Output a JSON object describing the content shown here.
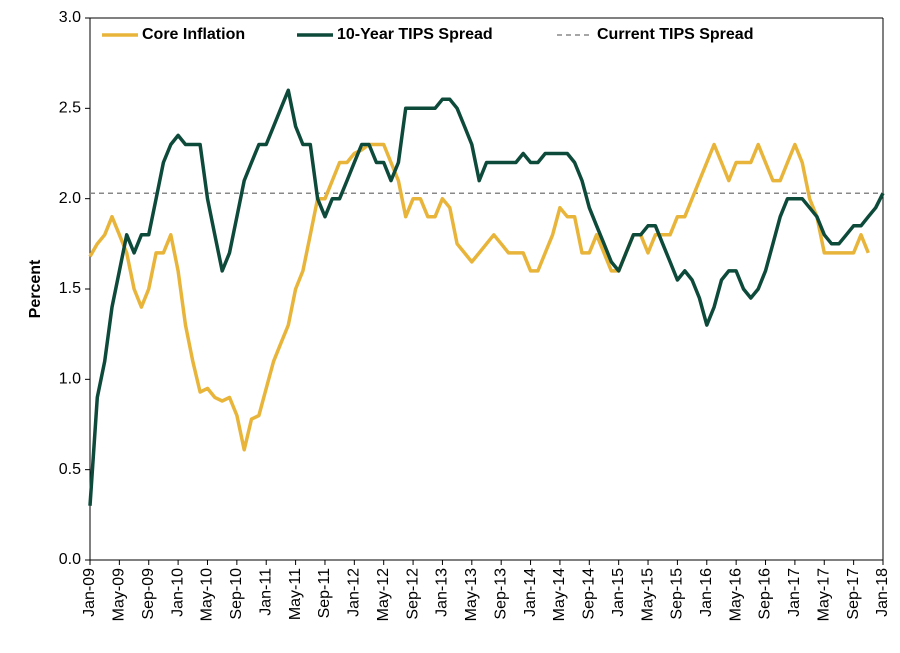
{
  "chart_data": {
    "type": "line",
    "y_label": "Percent",
    "categories": [
      "Jan-09",
      null,
      null,
      null,
      "May-09",
      null,
      null,
      null,
      "Sep-09",
      null,
      null,
      null,
      "Jan-10",
      null,
      null,
      null,
      "May-10",
      null,
      null,
      null,
      "Sep-10",
      null,
      null,
      null,
      "Jan-11",
      null,
      null,
      null,
      "May-11",
      null,
      null,
      null,
      "Sep-11",
      null,
      null,
      null,
      "Jan-12",
      null,
      null,
      null,
      "May-12",
      null,
      null,
      null,
      "Sep-12",
      null,
      null,
      null,
      "Jan-13",
      null,
      null,
      null,
      "May-13",
      null,
      null,
      null,
      "Sep-13",
      null,
      null,
      null,
      "Jan-14",
      null,
      null,
      null,
      "May-14",
      null,
      null,
      null,
      "Sep-14",
      null,
      null,
      null,
      "Jan-15",
      null,
      null,
      null,
      "May-15",
      null,
      null,
      null,
      "Sep-15",
      null,
      null,
      null,
      "Jan-16",
      null,
      null,
      null,
      "May-16",
      null,
      null,
      null,
      "Sep-16",
      null,
      null,
      null,
      "Jan-17",
      null,
      null,
      null,
      "May-17",
      null,
      null,
      null,
      "Sep-17",
      null,
      null,
      null,
      "Jan-18"
    ],
    "series": [
      {
        "name": "Core Inflation",
        "color": "#e8b53a",
        "values": [
          1.68,
          1.75,
          1.8,
          1.9,
          1.8,
          1.7,
          1.5,
          1.4,
          1.5,
          1.7,
          1.7,
          1.8,
          1.6,
          1.3,
          1.1,
          0.93,
          0.95,
          0.9,
          0.88,
          0.9,
          0.8,
          0.61,
          0.78,
          0.8,
          0.95,
          1.1,
          1.2,
          1.3,
          1.5,
          1.6,
          1.8,
          2.0,
          2.0,
          2.1,
          2.2,
          2.2,
          2.25,
          2.27,
          2.3,
          2.3,
          2.3,
          2.2,
          2.1,
          1.9,
          2.0,
          2.0,
          1.9,
          1.9,
          2.0,
          1.95,
          1.75,
          1.7,
          1.65,
          1.7,
          1.75,
          1.8,
          1.75,
          1.7,
          1.7,
          1.7,
          1.6,
          1.6,
          1.7,
          1.8,
          1.95,
          1.9,
          1.9,
          1.7,
          1.7,
          1.8,
          1.7,
          1.6,
          1.6,
          1.7,
          1.8,
          1.8,
          1.7,
          1.8,
          1.8,
          1.8,
          1.9,
          1.9,
          2.0,
          2.1,
          2.2,
          2.3,
          2.2,
          2.1,
          2.2,
          2.2,
          2.2,
          2.3,
          2.2,
          2.1,
          2.1,
          2.2,
          2.3,
          2.2,
          2.0,
          1.9,
          1.7,
          1.7,
          1.7,
          1.7,
          1.7,
          1.8,
          1.7,
          null,
          null
        ]
      },
      {
        "name": "10-Year TIPS Spread",
        "color": "#0d4a3a",
        "values": [
          0.3,
          0.9,
          1.1,
          1.4,
          1.6,
          1.8,
          1.7,
          1.8,
          1.8,
          2.0,
          2.2,
          2.3,
          2.35,
          2.3,
          2.3,
          2.3,
          2.0,
          1.8,
          1.6,
          1.7,
          1.9,
          2.1,
          2.2,
          2.3,
          2.3,
          2.4,
          2.5,
          2.6,
          2.4,
          2.3,
          2.3,
          2.0,
          1.9,
          2.0,
          2.0,
          2.1,
          2.2,
          2.3,
          2.3,
          2.2,
          2.2,
          2.1,
          2.2,
          2.5,
          2.5,
          2.5,
          2.5,
          2.5,
          2.55,
          2.55,
          2.5,
          2.4,
          2.3,
          2.1,
          2.2,
          2.2,
          2.2,
          2.2,
          2.2,
          2.25,
          2.2,
          2.2,
          2.25,
          2.25,
          2.25,
          2.25,
          2.2,
          2.1,
          1.95,
          1.85,
          1.75,
          1.65,
          1.6,
          1.7,
          1.8,
          1.8,
          1.85,
          1.85,
          1.75,
          1.65,
          1.55,
          1.6,
          1.55,
          1.45,
          1.3,
          1.4,
          1.55,
          1.6,
          1.6,
          1.5,
          1.45,
          1.5,
          1.6,
          1.75,
          1.9,
          2.0,
          2.0,
          2.0,
          1.95,
          1.9,
          1.8,
          1.75,
          1.75,
          1.8,
          1.85,
          1.85,
          1.9,
          1.95,
          2.03
        ]
      }
    ],
    "reference_line": {
      "name": "Current TIPS Spread",
      "value": 2.03,
      "color": "#888888"
    },
    "ylim": [
      0,
      3
    ],
    "yticks": [
      {
        "value": 0,
        "label": "0.0"
      },
      {
        "value": 0.5,
        "label": "0.5"
      },
      {
        "value": 1,
        "label": "1.0"
      },
      {
        "value": 1.5,
        "label": "1.5"
      },
      {
        "value": 2,
        "label": "2.0"
      },
      {
        "value": 2.5,
        "label": "2.5"
      },
      {
        "value": 3,
        "label": "3.0"
      }
    ]
  }
}
